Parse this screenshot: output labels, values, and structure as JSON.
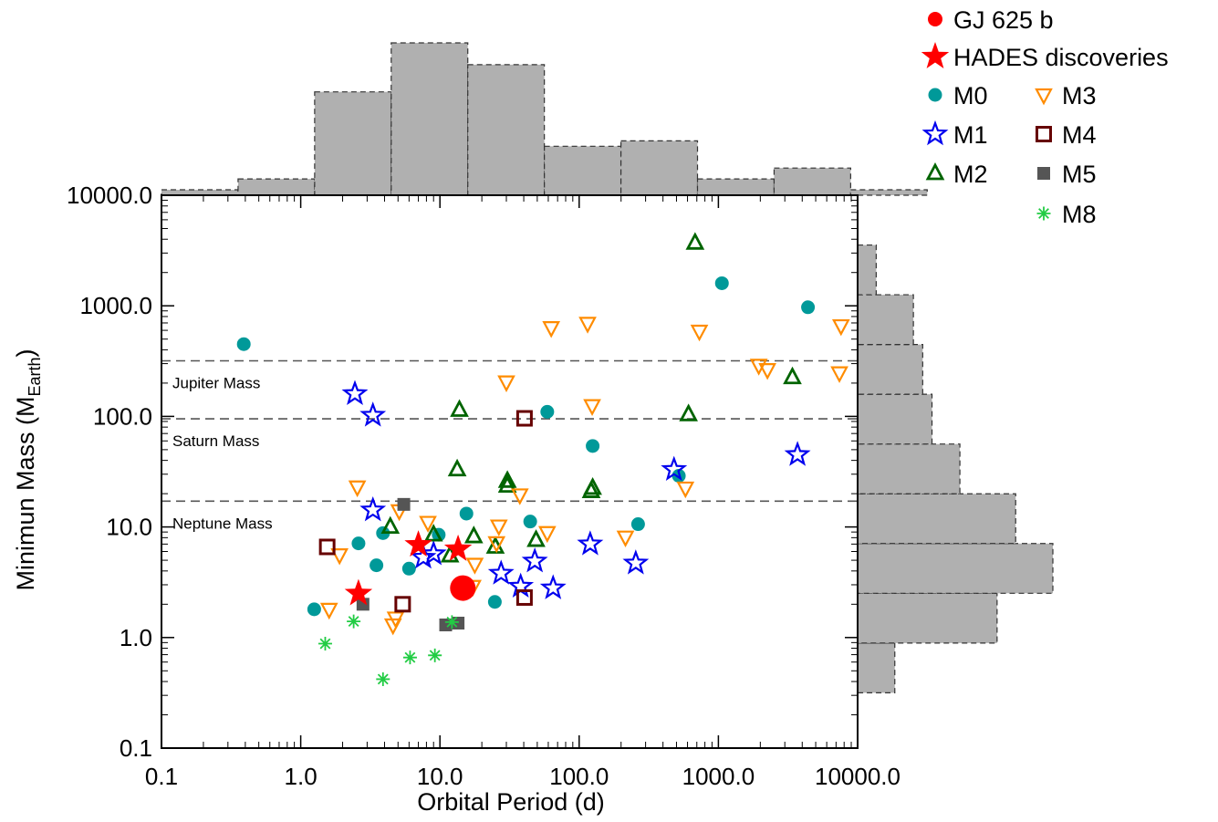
{
  "chart_data": {
    "type": "scatter",
    "xlabel": "Orbital Period (d)",
    "ylabel_main": "Minimun Mass (M",
    "ylabel_sub": "Earth",
    "ylabel_close": ")",
    "xscale": "log",
    "yscale": "log",
    "xlim": [
      0.1,
      10000
    ],
    "ylim": [
      0.1,
      10000
    ],
    "x_ticks": [
      0.1,
      1,
      10,
      100,
      1000,
      10000
    ],
    "x_tick_labels": [
      "0.1",
      "1.0",
      "10.0",
      "100.0",
      "1000.0",
      "10000.0"
    ],
    "y_ticks": [
      0.1,
      1,
      10,
      100,
      1000,
      10000
    ],
    "y_tick_labels": [
      "0.1",
      "1.0",
      "10.0",
      "100.0",
      "1000.0",
      "10000.0"
    ],
    "reference_lines": [
      {
        "label": "Jupiter Mass",
        "y": 318
      },
      {
        "label": "Saturn Mass",
        "y": 95
      },
      {
        "label": "Neptune Mass",
        "y": 17.1
      }
    ],
    "legend_position": "top-right",
    "series": [
      {
        "name": "GJ 625 b",
        "marker": "circle",
        "color": "#ff0000",
        "filled": true,
        "points": [
          [
            14.6,
            2.8
          ]
        ]
      },
      {
        "name": "HADES discoveries",
        "marker": "star",
        "color": "#ff0000",
        "filled": true,
        "points": [
          [
            2.6,
            2.5
          ],
          [
            7.0,
            6.9
          ],
          [
            13.5,
            6.3
          ]
        ]
      },
      {
        "name": "M0",
        "marker": "circle",
        "color": "#009999",
        "filled": true,
        "points": [
          [
            0.39,
            450
          ],
          [
            1.25,
            1.8
          ],
          [
            2.6,
            7.1
          ],
          [
            3.5,
            4.5
          ],
          [
            3.9,
            8.8
          ],
          [
            6.0,
            4.2
          ],
          [
            9.8,
            8.5
          ],
          [
            15.5,
            13.2
          ],
          [
            24.8,
            2.1
          ],
          [
            44.5,
            11.2
          ],
          [
            59,
            110
          ],
          [
            125,
            54
          ],
          [
            265,
            10.6
          ],
          [
            520,
            29
          ],
          [
            1060,
            1600
          ],
          [
            4400,
            970
          ]
        ]
      },
      {
        "name": "M1",
        "marker": "star-open",
        "color": "#0000ee",
        "filled": false,
        "points": [
          [
            2.45,
            160
          ],
          [
            3.3,
            102
          ],
          [
            3.3,
            14.2
          ],
          [
            7.6,
            5.3
          ],
          [
            9.0,
            5.7
          ],
          [
            27.5,
            3.8
          ],
          [
            38,
            2.9
          ],
          [
            48,
            4.9
          ],
          [
            65,
            2.8
          ],
          [
            120,
            7.0
          ],
          [
            255,
            4.7
          ],
          [
            480,
            33
          ],
          [
            3700,
            45
          ]
        ]
      },
      {
        "name": "M2",
        "marker": "triangle-open",
        "color": "#006400",
        "filled": false,
        "points": [
          [
            4.4,
            10
          ],
          [
            9.0,
            8.5
          ],
          [
            11.8,
            5.5
          ],
          [
            13.8,
            114
          ],
          [
            13.3,
            33
          ],
          [
            17.5,
            8.2
          ],
          [
            25,
            6.6
          ],
          [
            30.5,
            26
          ],
          [
            30.5,
            23.5
          ],
          [
            49,
            7.6
          ],
          [
            125,
            22.5
          ],
          [
            122,
            21
          ],
          [
            610,
            104
          ],
          [
            680,
            3700
          ],
          [
            3400,
            225
          ]
        ]
      },
      {
        "name": "M3",
        "marker": "triangle-down-open",
        "color": "#ff8c00",
        "filled": false,
        "points": [
          [
            1.6,
            1.8
          ],
          [
            1.9,
            5.6
          ],
          [
            2.55,
            23
          ],
          [
            4.6,
            1.3
          ],
          [
            4.8,
            1.5
          ],
          [
            5.1,
            14
          ],
          [
            8.2,
            11
          ],
          [
            17.2,
            2.9
          ],
          [
            17.8,
            4.6
          ],
          [
            25.5,
            7.2
          ],
          [
            26.5,
            10.2
          ],
          [
            30,
            205
          ],
          [
            37.5,
            19.5
          ],
          [
            59,
            8.9
          ],
          [
            63,
            635
          ],
          [
            115,
            695
          ],
          [
            124,
            125
          ],
          [
            215,
            8.1
          ],
          [
            580,
            22.5
          ],
          [
            730,
            590
          ],
          [
            1950,
            290
          ],
          [
            2250,
            265
          ],
          [
            7400,
            248
          ],
          [
            7600,
            660
          ]
        ]
      },
      {
        "name": "M4",
        "marker": "square-open",
        "color": "#660000",
        "filled": false,
        "points": [
          [
            1.55,
            6.6
          ],
          [
            5.4,
            2.0
          ],
          [
            40.5,
            2.3
          ],
          [
            40.5,
            96
          ]
        ]
      },
      {
        "name": "M5",
        "marker": "square",
        "color": "#555555",
        "filled": true,
        "points": [
          [
            2.8,
            2.0
          ],
          [
            5.5,
            16
          ],
          [
            11.0,
            1.3
          ],
          [
            13.5,
            1.35
          ]
        ]
      },
      {
        "name": "M8",
        "marker": "asterisk",
        "color": "#22cc44",
        "filled": false,
        "points": [
          [
            1.5,
            0.88
          ],
          [
            2.4,
            1.4
          ],
          [
            3.9,
            0.42
          ],
          [
            6.1,
            0.66
          ],
          [
            9.2,
            0.69
          ],
          [
            12.2,
            1.38
          ]
        ]
      }
    ],
    "hist_x": {
      "bin_edges_log10": [
        -1,
        -0.45,
        0.1,
        0.65,
        1.2,
        1.75,
        2.3,
        2.85,
        3.4,
        3.95,
        4.5
      ],
      "counts": [
        1,
        3,
        19,
        28,
        24,
        9,
        10,
        3,
        5,
        1
      ]
    },
    "hist_y": {
      "bin_edges_log10": [
        -0.5,
        -0.05,
        0.4,
        0.85,
        1.3,
        1.75,
        2.2,
        2.65,
        3.1,
        3.55,
        4.0
      ],
      "counts": [
        4,
        15,
        21,
        17,
        11,
        8,
        7,
        6,
        2,
        0
      ]
    }
  },
  "legend": {
    "items": [
      {
        "label": "GJ 625 b",
        "marker": "circle",
        "color": "#ff0000",
        "filled": true
      },
      {
        "label": "HADES discoveries",
        "marker": "star",
        "color": "#ff0000",
        "filled": true
      },
      {
        "label": "M0",
        "marker": "circle",
        "color": "#009999",
        "filled": true
      },
      {
        "label": "M3",
        "marker": "triangle-down-open",
        "color": "#ff8c00",
        "filled": false
      },
      {
        "label": "M1",
        "marker": "star-open",
        "color": "#0000ee",
        "filled": false
      },
      {
        "label": "M4",
        "marker": "square-open",
        "color": "#660000",
        "filled": false
      },
      {
        "label": "M2",
        "marker": "triangle-open",
        "color": "#006400",
        "filled": false
      },
      {
        "label": "M5",
        "marker": "square",
        "color": "#555555",
        "filled": true
      },
      {
        "label": "M8",
        "marker": "asterisk",
        "color": "#22cc44",
        "filled": false
      }
    ]
  },
  "histogram_color": "#b0b0b0"
}
